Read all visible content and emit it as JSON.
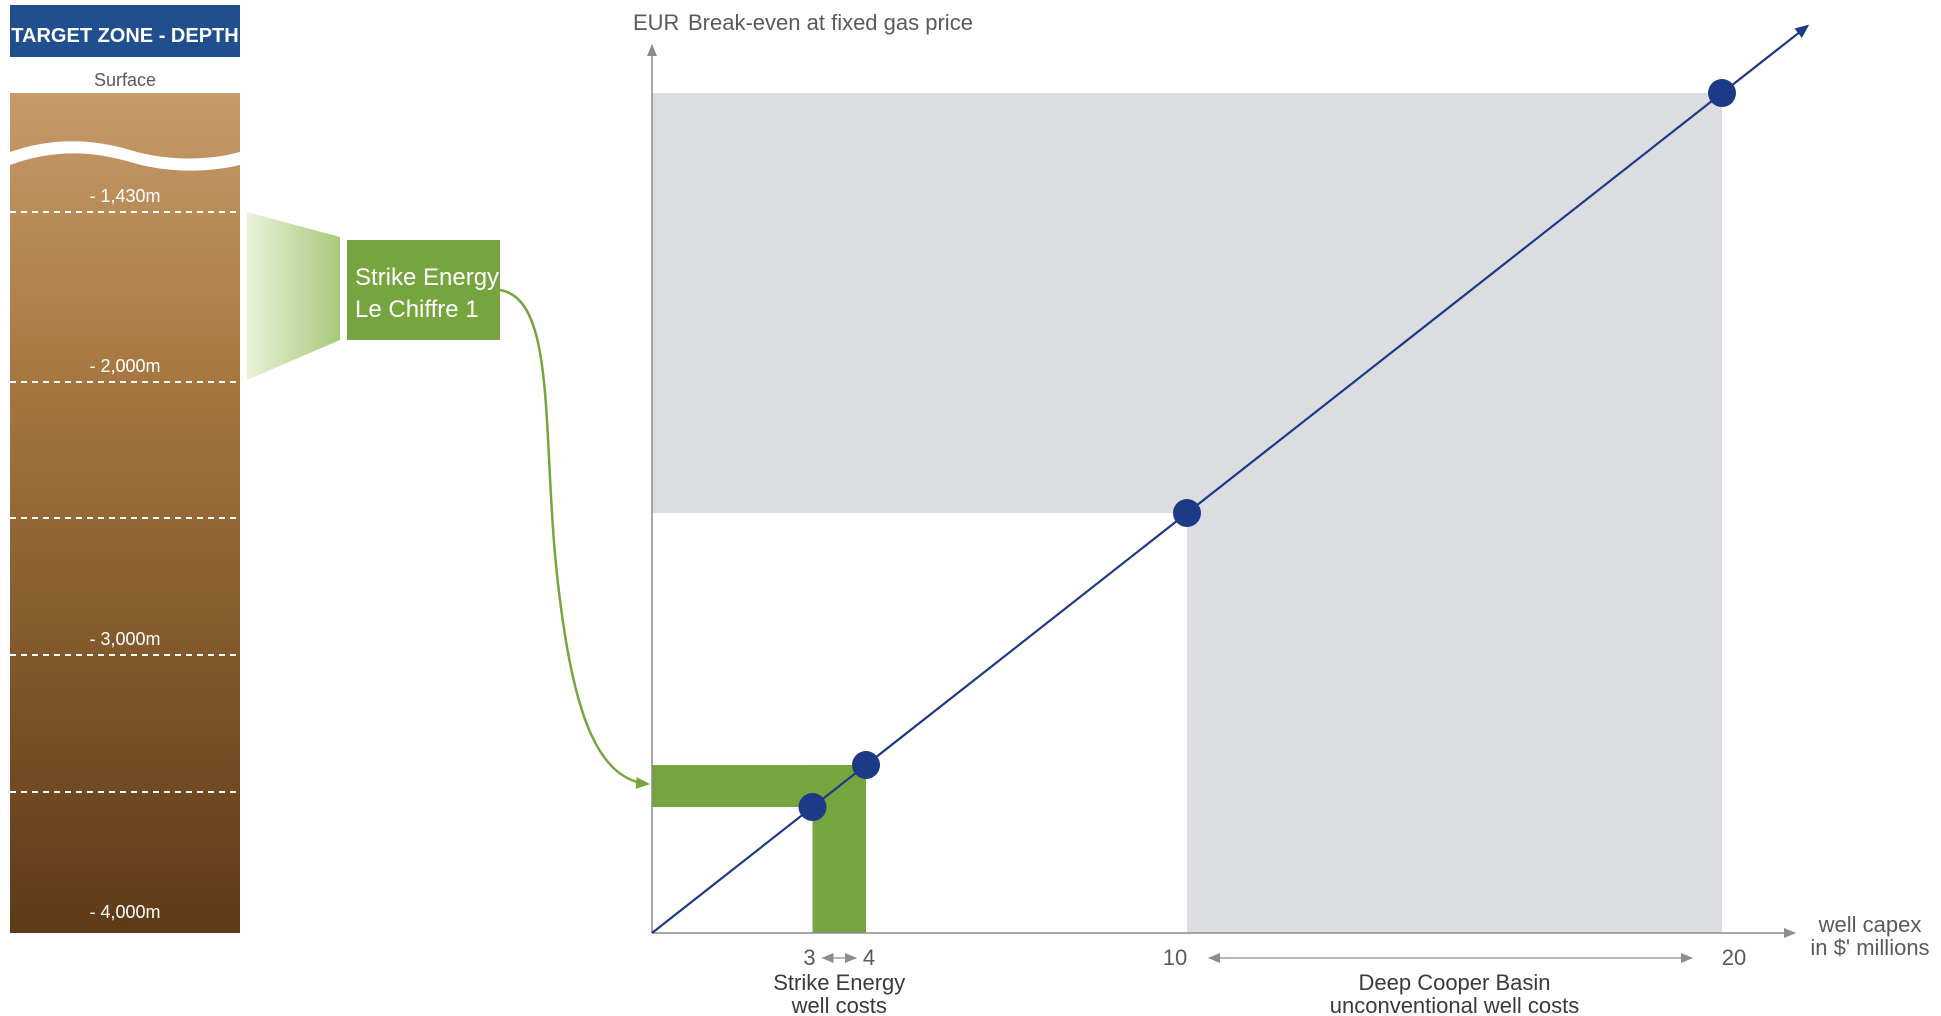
{
  "depth_column": {
    "title": "TARGET ZONE - DEPTH",
    "surface_label": "Surface",
    "depth_labels": [
      "- 1,430m",
      "- 2,000m",
      "- 3,000m",
      "- 4,000m"
    ],
    "title_bg_color": "#1f4f8f",
    "soil_top_color": "#c79a6b",
    "soil_bottom_color": "#5e3a17"
  },
  "callout": {
    "line1": "Strike Energy",
    "line2": "Le Chiffre 1",
    "box_color": "#76a540",
    "funnel_color": "#a8c97a"
  },
  "chart_data": {
    "type": "line",
    "ylabel_unit": "EUR",
    "ylabel": "Break-even at fixed gas price",
    "xlabel_line1": "well capex",
    "xlabel_line2": "in $' millions",
    "x_ticks": [
      "3",
      "4",
      "10",
      "20"
    ],
    "points": [
      {
        "x": 3
      },
      {
        "x": 4
      },
      {
        "x": 10
      },
      {
        "x": 20
      }
    ],
    "ranges": [
      {
        "from": 3,
        "to": 4,
        "label_line1": "Strike Energy",
        "label_line2": "well costs",
        "color": "#76a540"
      },
      {
        "from": 10,
        "to": 20,
        "label_line1": "Deep Cooper Basin",
        "label_line2": "unconventional well costs",
        "color": "#dcdde0"
      }
    ],
    "line_color": "#1d3a86",
    "point_color": "#1d3a86"
  }
}
